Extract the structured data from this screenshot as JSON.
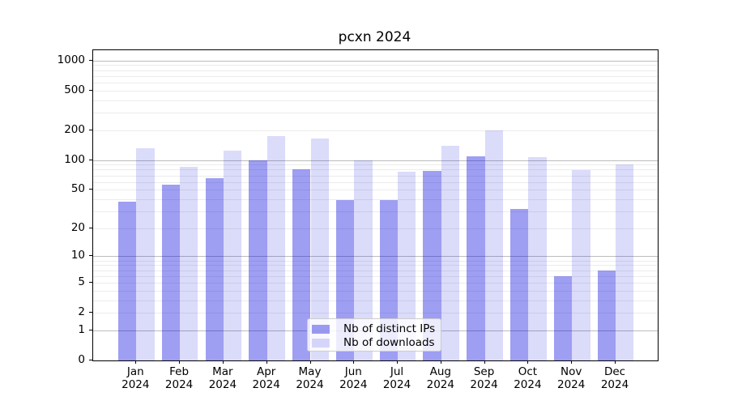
{
  "chart_data": {
    "type": "bar",
    "title": "pcxn 2024",
    "categories": [
      "Jan 2024",
      "Feb 2024",
      "Mar 2024",
      "Apr 2024",
      "May 2024",
      "Jun 2024",
      "Jul 2024",
      "Aug 2024",
      "Sep 2024",
      "Oct 2024",
      "Nov 2024",
      "Dec 2024"
    ],
    "series": [
      {
        "name": "Nb of distinct IPs",
        "color": "rgba(0,0,220,0.38)",
        "values": [
          38,
          56,
          66,
          100,
          80,
          39,
          39,
          77,
          110,
          32,
          6,
          7
        ]
      },
      {
        "name": "Nb of downloads",
        "color": "rgba(0,0,220,0.14)",
        "values": [
          131,
          86,
          125,
          175,
          164,
          100,
          76,
          140,
          200,
          108,
          79,
          90
        ]
      }
    ],
    "xlabel": "",
    "ylabel": "",
    "yscale": "log10(1+v)",
    "y_ticks": [
      0,
      1,
      2,
      5,
      10,
      20,
      50,
      100,
      200,
      500,
      1000
    ],
    "ylim": [
      0,
      1250
    ],
    "grid": "major+minor horizontal",
    "legend": {
      "position": "lower-center-inside",
      "entries": [
        "Nb of distinct IPs",
        "Nb of downloads"
      ]
    },
    "colors": {
      "bar_distinct_ips": "rgba(0,0,220,0.38)",
      "bar_downloads": "rgba(0,0,220,0.14)",
      "grid_major": "#bcbcbc",
      "grid_minor": "#ececec",
      "axis": "#000000",
      "background": "#ffffff"
    }
  }
}
